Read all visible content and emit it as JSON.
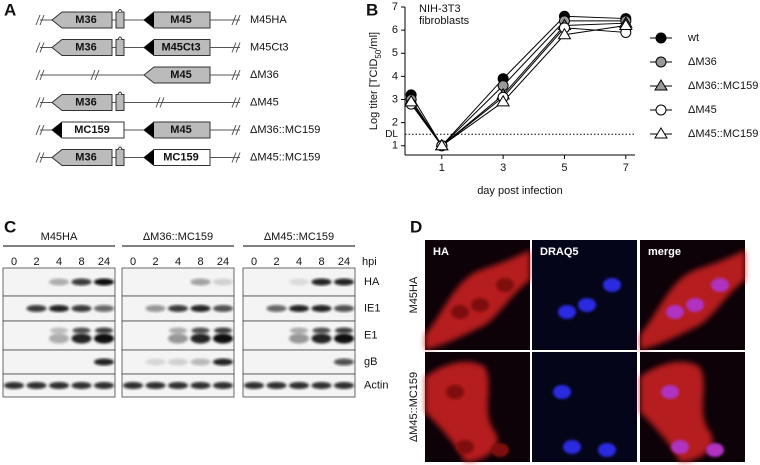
{
  "panel_labels": [
    "A",
    "B",
    "C",
    "D"
  ],
  "panel_a": {
    "rows": [
      {
        "left": "M36",
        "right": "M45",
        "label": "M45HA"
      },
      {
        "left": "M36",
        "right": "M45Ct3",
        "label": "M45Ct3"
      },
      {
        "right": "M45",
        "label": "ΔM36"
      },
      {
        "left": "M36",
        "label": "ΔM45"
      },
      {
        "left": "MC159",
        "right": "M45",
        "label": "ΔM36::MC159"
      },
      {
        "left": "M36",
        "right": "MC159",
        "label": "ΔM45::MC159"
      }
    ]
  },
  "chart_data": {
    "type": "line",
    "annotation": [
      "NIH-3T3",
      "fibroblasts"
    ],
    "ylabel_parts": [
      "Log titer [TCID",
      "50",
      "/ml]"
    ],
    "xlabel": "day post infection",
    "x": [
      0,
      1,
      3,
      5,
      7
    ],
    "xlim": [
      -0.2,
      7.3
    ],
    "xticks": [
      1,
      3,
      5,
      7
    ],
    "ylim": [
      0.6,
      7
    ],
    "yticks": [
      1,
      2,
      3,
      4,
      5,
      6,
      7
    ],
    "detection_limit": {
      "value": 1.5,
      "label": "DL"
    },
    "series": [
      {
        "name": "wt",
        "color": "#000000",
        "marker": "circle",
        "values": [
          3.2,
          1,
          3.9,
          6.6,
          6.5
        ]
      },
      {
        "name": "ΔM36",
        "color": "#999999",
        "marker": "circle",
        "values": [
          3.0,
          1,
          3.6,
          6.4,
          6.4
        ]
      },
      {
        "name": "ΔM36::MC159",
        "color": "#999999",
        "marker": "triangle",
        "values": [
          2.9,
          1,
          3.2,
          6.2,
          6.3
        ]
      },
      {
        "name": "ΔM45",
        "color": "#ffffff",
        "marker": "circle",
        "values": [
          2.8,
          1,
          3.1,
          6.1,
          5.9
        ]
      },
      {
        "name": "ΔM45::MC159",
        "color": "#ffffff",
        "marker": "triangle",
        "values": [
          2.9,
          1,
          2.9,
          5.8,
          6.2
        ]
      }
    ]
  },
  "panel_c": {
    "groups": [
      "M45HA",
      "ΔM36::MC159",
      "ΔM45::MC159"
    ],
    "lanes": [
      "0",
      "2",
      "4",
      "8",
      "24"
    ],
    "lane_unit": "hpi",
    "rows": [
      "HA",
      "IE1",
      "E1",
      "gB",
      "Actin"
    ]
  },
  "panel_d": {
    "columns": [
      "HA",
      "DRAQ5",
      "merge"
    ],
    "rows": [
      "M45HA",
      "ΔM45::MC159"
    ]
  }
}
